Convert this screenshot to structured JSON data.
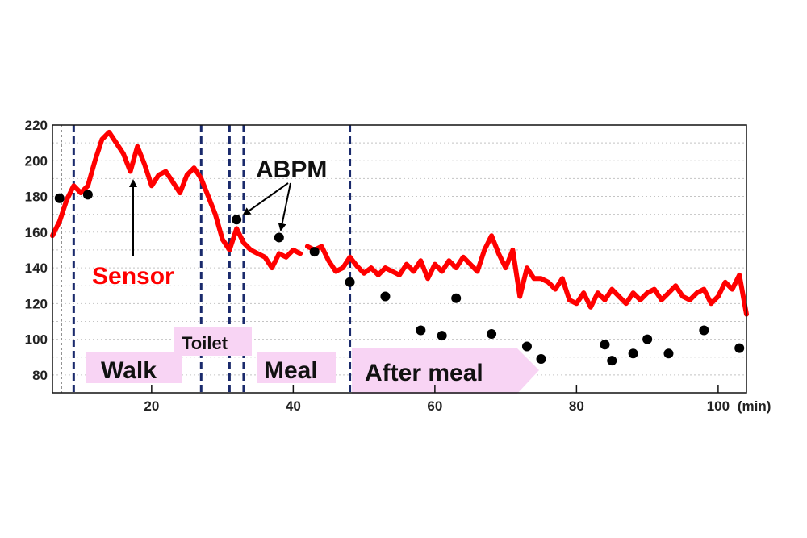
{
  "chart_data": {
    "type": "line",
    "xunit": "(min)",
    "xlim": [
      6,
      104
    ],
    "ylim": [
      70,
      220
    ],
    "x_ticks": [
      20,
      40,
      60,
      80,
      100
    ],
    "y_ticks": [
      80,
      100,
      120,
      140,
      160,
      180,
      200,
      220
    ],
    "grid": "horizontal dotted",
    "series": [
      {
        "name": "Sensor",
        "style": "line",
        "color": "#ff0000",
        "points": [
          [
            6,
            158
          ],
          [
            7,
            166
          ],
          [
            8,
            178
          ],
          [
            9,
            186
          ],
          [
            10,
            182
          ],
          [
            11,
            186
          ],
          [
            12,
            200
          ],
          [
            13,
            212
          ],
          [
            14,
            216
          ],
          [
            15,
            210
          ],
          [
            16,
            204
          ],
          [
            17,
            194
          ],
          [
            18,
            208
          ],
          [
            19,
            198
          ],
          [
            20,
            186
          ],
          [
            21,
            192
          ],
          [
            22,
            194
          ],
          [
            23,
            188
          ],
          [
            24,
            182
          ],
          [
            25,
            192
          ],
          [
            26,
            196
          ],
          [
            27,
            190
          ],
          [
            28,
            180
          ],
          [
            29,
            170
          ],
          [
            30,
            156
          ],
          [
            31,
            150
          ],
          [
            32,
            162
          ],
          [
            33,
            154
          ],
          [
            34,
            150
          ],
          [
            35,
            148
          ],
          [
            36,
            146
          ],
          [
            37,
            140
          ],
          [
            38,
            148
          ],
          [
            39,
            146
          ],
          [
            40,
            150
          ],
          [
            41,
            148
          ],
          [
            null,
            null
          ],
          [
            42,
            152
          ],
          [
            43,
            150
          ],
          [
            44,
            152
          ],
          [
            45,
            144
          ],
          [
            46,
            138
          ],
          [
            47,
            140
          ],
          [
            48,
            146
          ],
          [
            49,
            141
          ],
          [
            50,
            137
          ],
          [
            51,
            140
          ],
          [
            52,
            136
          ],
          [
            53,
            140
          ],
          [
            54,
            138
          ],
          [
            55,
            136
          ],
          [
            56,
            142
          ],
          [
            57,
            138
          ],
          [
            58,
            144
          ],
          [
            59,
            134
          ],
          [
            60,
            142
          ],
          [
            61,
            138
          ],
          [
            62,
            144
          ],
          [
            63,
            140
          ],
          [
            64,
            146
          ],
          [
            65,
            142
          ],
          [
            66,
            138
          ],
          [
            67,
            150
          ],
          [
            68,
            158
          ],
          [
            69,
            148
          ],
          [
            70,
            140
          ],
          [
            71,
            150
          ],
          [
            72,
            124
          ],
          [
            73,
            140
          ],
          [
            74,
            134
          ],
          [
            75,
            134
          ],
          [
            76,
            132
          ],
          [
            77,
            128
          ],
          [
            78,
            134
          ],
          [
            79,
            122
          ],
          [
            80,
            120
          ],
          [
            81,
            126
          ],
          [
            82,
            118
          ],
          [
            83,
            126
          ],
          [
            84,
            122
          ],
          [
            85,
            128
          ],
          [
            86,
            124
          ],
          [
            87,
            120
          ],
          [
            88,
            126
          ],
          [
            89,
            122
          ],
          [
            90,
            126
          ],
          [
            91,
            128
          ],
          [
            92,
            122
          ],
          [
            93,
            126
          ],
          [
            94,
            130
          ],
          [
            95,
            124
          ],
          [
            96,
            122
          ],
          [
            97,
            126
          ],
          [
            98,
            128
          ],
          [
            99,
            120
          ],
          [
            100,
            124
          ],
          [
            101,
            132
          ],
          [
            102,
            128
          ],
          [
            103,
            136
          ],
          [
            104,
            114
          ]
        ]
      },
      {
        "name": "ABPM",
        "style": "scatter",
        "color": "#000000",
        "points": [
          [
            7,
            179
          ],
          [
            11,
            181
          ],
          [
            32,
            167
          ],
          [
            38,
            157
          ],
          [
            43,
            149
          ],
          [
            48,
            132
          ],
          [
            53,
            124
          ],
          [
            58,
            105
          ],
          [
            61,
            102
          ],
          [
            63,
            123
          ],
          [
            68,
            103
          ],
          [
            73,
            96
          ],
          [
            75,
            89
          ],
          [
            84,
            97
          ],
          [
            85,
            88
          ],
          [
            88,
            92
          ],
          [
            90,
            100
          ],
          [
            93,
            92
          ],
          [
            98,
            105
          ],
          [
            103,
            95
          ]
        ]
      }
    ],
    "event_lines_x": [
      7.3,
      9,
      27,
      31,
      33,
      48
    ],
    "annotations": {
      "sensor_label": "Sensor",
      "abpm_label": "ABPM",
      "walk": "Walk",
      "toilet": "Toilet",
      "meal": "Meal",
      "after_meal": "After meal"
    },
    "colors": {
      "sensor": "#ff0000",
      "abpm": "#000000",
      "event_line": "#1a2a6c",
      "label_bg": "#f8d4f4"
    }
  }
}
